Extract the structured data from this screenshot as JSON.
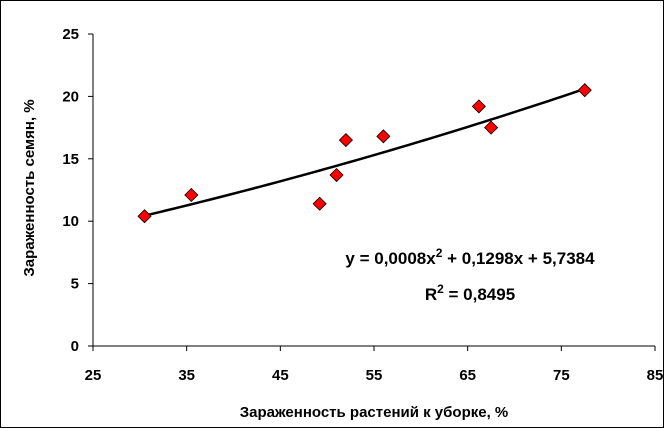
{
  "chart_data": {
    "type": "scatter",
    "xlabel": "Зараженность растений к уборке, %",
    "ylabel": "Зараженность семян, %",
    "xlim": [
      25,
      85
    ],
    "ylim": [
      0,
      25
    ],
    "x_ticks": [
      25,
      35,
      45,
      55,
      65,
      75,
      85
    ],
    "y_ticks": [
      0,
      5,
      10,
      15,
      20,
      25
    ],
    "grid": false,
    "marker": "diamond",
    "marker_color": "#ff0000",
    "trendline_color": "#000000",
    "trendline": {
      "type": "polynomial",
      "order": 2,
      "coefficients": [
        0.0008,
        0.1298,
        5.7384
      ],
      "x_range": [
        30.5,
        77.5
      ]
    },
    "annotations": {
      "equation_main": "y = 0,0008x",
      "equation_sup": "2",
      "equation_rest": " + 0,1298x + 5,7384",
      "r2_main": "R",
      "r2_sup": "2",
      "r2_rest": " = 0,8495"
    },
    "points": [
      {
        "x": 30.5,
        "y": 10.4
      },
      {
        "x": 35.5,
        "y": 12.1
      },
      {
        "x": 49.2,
        "y": 11.4
      },
      {
        "x": 51.0,
        "y": 13.7
      },
      {
        "x": 52.0,
        "y": 16.5
      },
      {
        "x": 56.0,
        "y": 16.8
      },
      {
        "x": 66.2,
        "y": 19.2
      },
      {
        "x": 67.5,
        "y": 17.5
      },
      {
        "x": 77.5,
        "y": 20.5
      }
    ]
  }
}
